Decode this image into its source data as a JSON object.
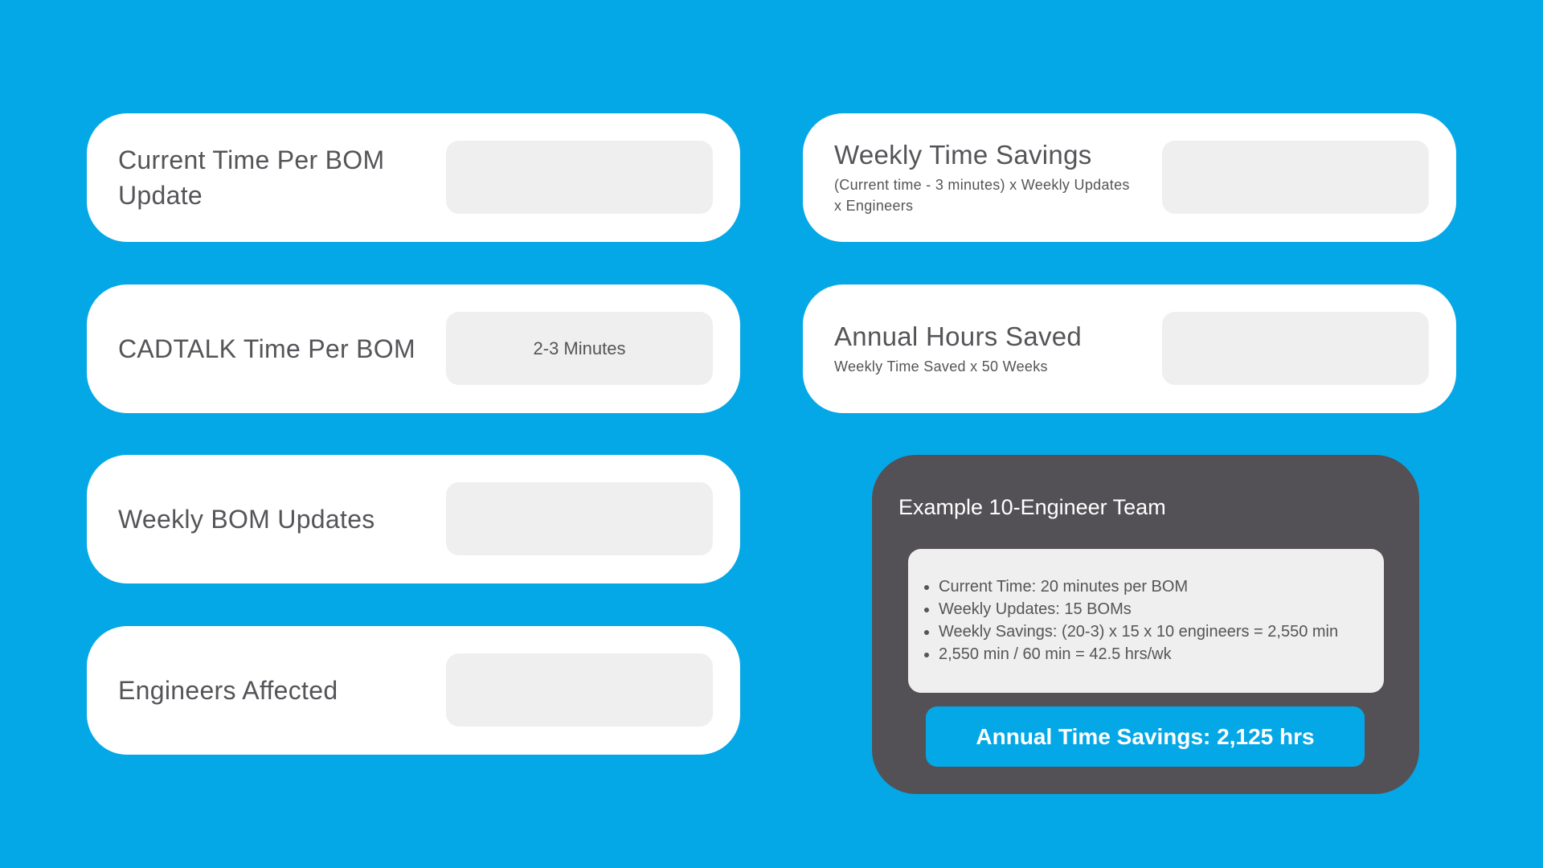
{
  "inputs_left": [
    {
      "label": "Current Time Per BOM Update",
      "value": ""
    },
    {
      "label": "CADTALK Time Per BOM",
      "value": "2-3 Minutes"
    },
    {
      "label": "Weekly BOM Updates",
      "value": ""
    },
    {
      "label": "Engineers Affected",
      "value": ""
    }
  ],
  "outputs_right": [
    {
      "title": "Weekly Time Savings",
      "formula": "(Current time - 3 minutes) x Weekly Updates x Engineers",
      "value": ""
    },
    {
      "title": "Annual Hours Saved",
      "formula": "Weekly Time Saved x 50 Weeks",
      "value": ""
    }
  ],
  "example": {
    "title": "Example 10-Engineer Team",
    "bullets": [
      "Current Time: 20 minutes per BOM",
      "Weekly Updates: 15 BOMs",
      "Weekly Savings: (20-3) x 15 x 10 engineers = 2,550 min",
      "2,550 min / 60 min = 42.5 hrs/wk"
    ],
    "result": "Annual Time Savings: 2,125 hrs"
  },
  "colors": {
    "background": "#05a8e6",
    "panel": "#545156",
    "field": "#efefef",
    "accent": "#05a8e6"
  }
}
